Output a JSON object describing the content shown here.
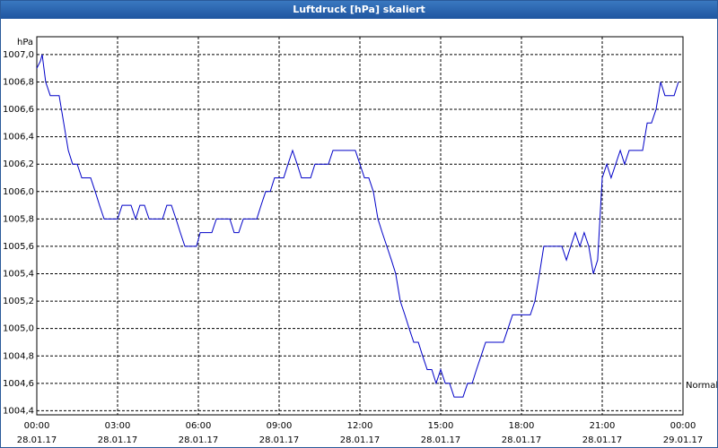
{
  "window_title": "Luftdruck [hPa] skaliert",
  "chart_data": {
    "type": "line",
    "y_label": "hPa",
    "annotation": {
      "label": "Normal",
      "value": 1004.6
    },
    "color": "#0000c8",
    "grid": true,
    "xlim": [
      0,
      24
    ],
    "ylim": [
      1004.37,
      1007.13
    ],
    "xticks": [
      {
        "value": 0,
        "label": "00:00"
      },
      {
        "value": 3,
        "label": "03:00"
      },
      {
        "value": 6,
        "label": "06:00"
      },
      {
        "value": 9,
        "label": "09:00"
      },
      {
        "value": 12,
        "label": "12:00"
      },
      {
        "value": 15,
        "label": "15:00"
      },
      {
        "value": 18,
        "label": "18:00"
      },
      {
        "value": 21,
        "label": "21:00"
      },
      {
        "value": 24,
        "label": "00:00"
      }
    ],
    "xtick_dates": [
      "28.01.17",
      "28.01.17",
      "28.01.17",
      "28.01.17",
      "28.01.17",
      "28.01.17",
      "28.01.17",
      "28.01.17",
      "29.01.17"
    ],
    "yticks": [
      {
        "value": 1004.4,
        "label": "1004,4"
      },
      {
        "value": 1004.6,
        "label": "1004,6"
      },
      {
        "value": 1004.8,
        "label": "1004,8"
      },
      {
        "value": 1005.0,
        "label": "1005,0"
      },
      {
        "value": 1005.2,
        "label": "1005,2"
      },
      {
        "value": 1005.4,
        "label": "1005,4"
      },
      {
        "value": 1005.6,
        "label": "1005,6"
      },
      {
        "value": 1005.8,
        "label": "1005,8"
      },
      {
        "value": 1006.0,
        "label": "1006,0"
      },
      {
        "value": 1006.2,
        "label": "1006,2"
      },
      {
        "value": 1006.4,
        "label": "1006,4"
      },
      {
        "value": 1006.6,
        "label": "1006,6"
      },
      {
        "value": 1006.8,
        "label": "1006,8"
      },
      {
        "value": 1007.0,
        "label": "1007,0"
      }
    ],
    "x": [
      0,
      0.13,
      0.2,
      0.33,
      0.5,
      0.83,
      1,
      1.17,
      1.33,
      1.5,
      1.67,
      2,
      2.17,
      2.33,
      2.5,
      3,
      3.17,
      3.5,
      3.67,
      3.83,
      4,
      4.17,
      4.67,
      4.83,
      5,
      5.17,
      5.33,
      5.5,
      5.93,
      6.07,
      6.5,
      6.67,
      7.17,
      7.33,
      7.5,
      7.67,
      8.17,
      8.33,
      8.5,
      8.67,
      8.83,
      9.17,
      9.33,
      9.5,
      9.67,
      9.83,
      10.17,
      10.33,
      10.83,
      11,
      11.83,
      12,
      12.17,
      12.33,
      12.5,
      12.67,
      12.83,
      13,
      13.17,
      13.33,
      13.5,
      13.67,
      13.83,
      14,
      14.17,
      14.33,
      14.5,
      14.67,
      14.83,
      15,
      15.17,
      15.33,
      15.5,
      15.83,
      16,
      16.17,
      16.33,
      16.5,
      16.67,
      17.33,
      17.5,
      17.67,
      18.33,
      18.5,
      18.67,
      18.83,
      19.5,
      19.67,
      19.83,
      20,
      20.17,
      20.33,
      20.5,
      20.67,
      20.83,
      21,
      21.17,
      21.33,
      21.5,
      21.67,
      21.83,
      22,
      22.5,
      22.67,
      22.83,
      23,
      23.17,
      23.33,
      23.67,
      23.83
    ],
    "values": [
      1006.9,
      1006.95,
      1007.0,
      1006.8,
      1006.7,
      1006.7,
      1006.5,
      1006.3,
      1006.2,
      1006.2,
      1006.1,
      1006.1,
      1006.0,
      1005.9,
      1005.8,
      1005.8,
      1005.9,
      1005.9,
      1005.8,
      1005.9,
      1005.9,
      1005.8,
      1005.8,
      1005.9,
      1005.9,
      1005.8,
      1005.7,
      1005.6,
      1005.6,
      1005.7,
      1005.7,
      1005.8,
      1005.8,
      1005.7,
      1005.7,
      1005.8,
      1005.8,
      1005.9,
      1006.0,
      1006.0,
      1006.1,
      1006.1,
      1006.2,
      1006.3,
      1006.2,
      1006.1,
      1006.1,
      1006.2,
      1006.2,
      1006.3,
      1006.3,
      1006.2,
      1006.1,
      1006.1,
      1006.0,
      1005.8,
      1005.7,
      1005.6,
      1005.5,
      1005.4,
      1005.2,
      1005.1,
      1005.0,
      1004.9,
      1004.9,
      1004.8,
      1004.7,
      1004.7,
      1004.6,
      1004.7,
      1004.6,
      1004.6,
      1004.5,
      1004.5,
      1004.6,
      1004.6,
      1004.7,
      1004.8,
      1004.9,
      1004.9,
      1005.0,
      1005.1,
      1005.1,
      1005.2,
      1005.4,
      1005.6,
      1005.6,
      1005.5,
      1005.6,
      1005.7,
      1005.6,
      1005.7,
      1005.6,
      1005.4,
      1005.5,
      1006.1,
      1006.2,
      1006.1,
      1006.2,
      1006.3,
      1006.2,
      1006.3,
      1006.3,
      1006.5,
      1006.5,
      1006.6,
      1006.8,
      1006.7,
      1006.7,
      1006.8
    ]
  }
}
